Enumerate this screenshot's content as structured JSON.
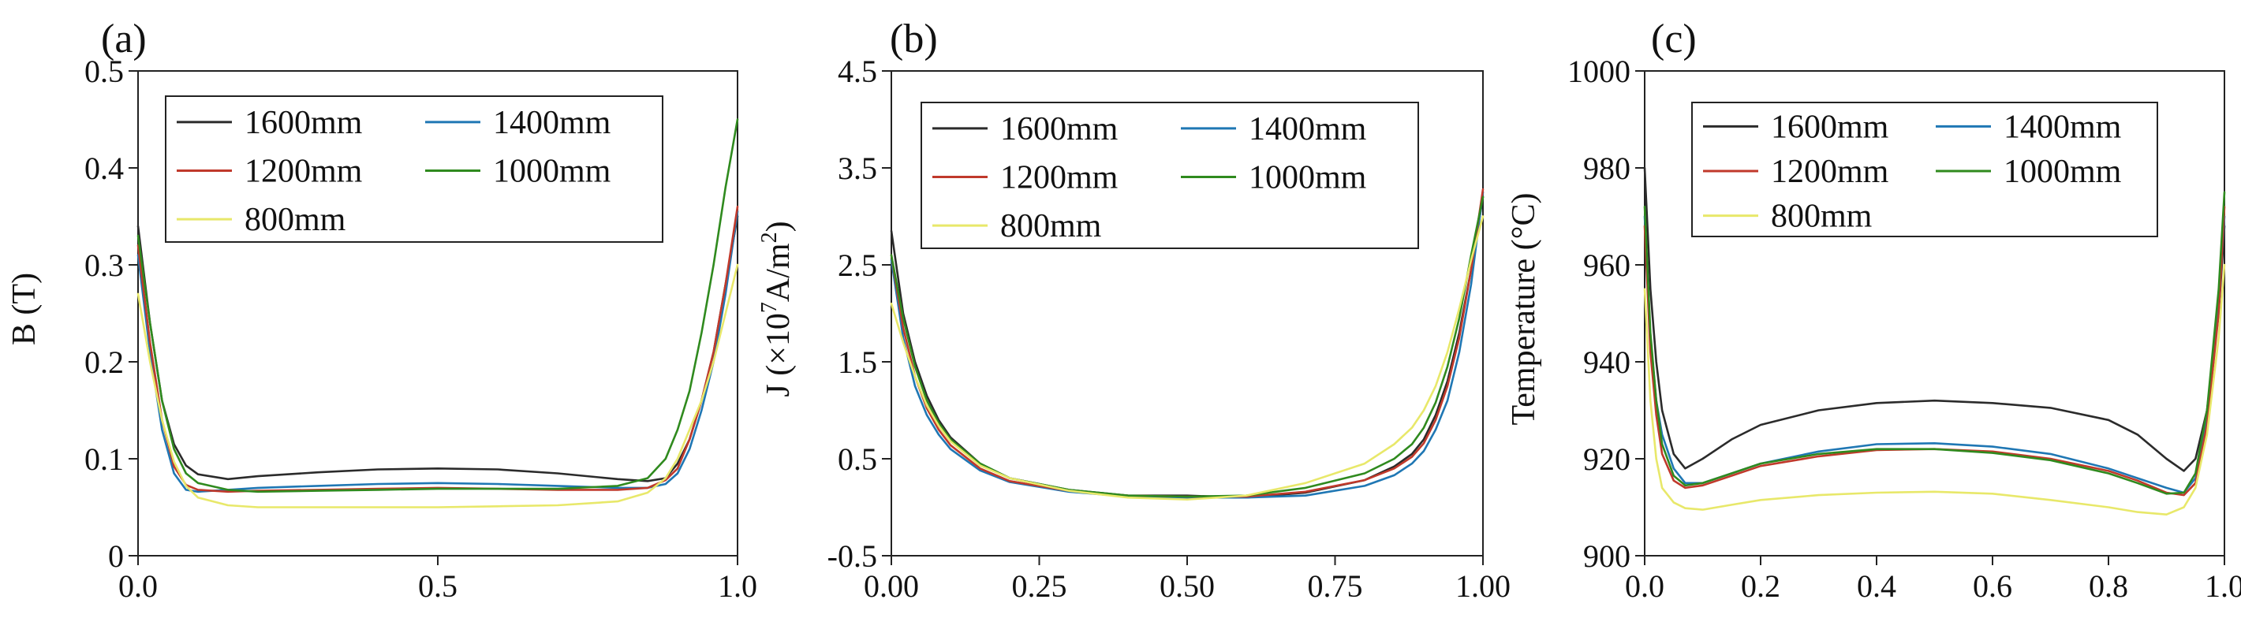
{
  "colors": {
    "1600mm": "#2b2b2b",
    "1400mm": "#1f77b4",
    "1200mm": "#c0392b",
    "1000mm": "#2f8a1e",
    "800mm": "#e8e86a"
  },
  "chart_data": [
    {
      "type": "line",
      "panel_label": "(a)",
      "xlabel": "",
      "ylabel_main": "B (T)",
      "xlim": [
        0,
        1
      ],
      "ylim": [
        0,
        0.5
      ],
      "x_ticks": [
        0.0,
        0.5,
        1.0
      ],
      "x_tick_labels": [
        "0.0",
        "0.5",
        "1.0"
      ],
      "y_ticks": [
        0,
        0.1,
        0.2,
        0.3,
        0.4,
        0.5
      ],
      "y_tick_labels": [
        "0",
        "0.1",
        "0.2",
        "0.3",
        "0.4",
        "0.5"
      ],
      "legend_placement": "top-center",
      "legend": [
        "1600mm",
        "1400mm",
        "1200mm",
        "1000mm",
        "800mm"
      ],
      "x": [
        0.0,
        0.02,
        0.04,
        0.06,
        0.08,
        0.1,
        0.15,
        0.2,
        0.3,
        0.4,
        0.5,
        0.6,
        0.7,
        0.8,
        0.85,
        0.88,
        0.9,
        0.92,
        0.94,
        0.96,
        0.98,
        1.0
      ],
      "series": [
        {
          "name": "1600mm",
          "values": [
            0.34,
            0.24,
            0.16,
            0.115,
            0.093,
            0.084,
            0.079,
            0.082,
            0.086,
            0.089,
            0.09,
            0.089,
            0.085,
            0.079,
            0.077,
            0.08,
            0.095,
            0.12,
            0.16,
            0.21,
            0.28,
            0.35
          ]
        },
        {
          "name": "1400mm",
          "values": [
            0.31,
            0.21,
            0.13,
            0.085,
            0.068,
            0.066,
            0.068,
            0.07,
            0.072,
            0.074,
            0.075,
            0.074,
            0.072,
            0.07,
            0.07,
            0.074,
            0.085,
            0.11,
            0.15,
            0.2,
            0.27,
            0.355
          ]
        },
        {
          "name": "1200mm",
          "values": [
            0.32,
            0.22,
            0.14,
            0.092,
            0.073,
            0.068,
            0.066,
            0.067,
            0.068,
            0.069,
            0.07,
            0.069,
            0.068,
            0.068,
            0.07,
            0.078,
            0.09,
            0.12,
            0.16,
            0.21,
            0.28,
            0.36
          ]
        },
        {
          "name": "1000mm",
          "values": [
            0.33,
            0.24,
            0.16,
            0.11,
            0.085,
            0.075,
            0.068,
            0.066,
            0.067,
            0.068,
            0.069,
            0.069,
            0.069,
            0.072,
            0.08,
            0.1,
            0.13,
            0.17,
            0.23,
            0.3,
            0.38,
            0.45
          ]
        },
        {
          "name": "800mm",
          "values": [
            0.27,
            0.2,
            0.14,
            0.097,
            0.072,
            0.06,
            0.052,
            0.05,
            0.05,
            0.05,
            0.05,
            0.051,
            0.052,
            0.056,
            0.065,
            0.08,
            0.1,
            0.13,
            0.16,
            0.2,
            0.25,
            0.3
          ]
        }
      ]
    },
    {
      "type": "line",
      "panel_label": "(b)",
      "xlabel": "",
      "ylabel_main": "J (×10",
      "ylabel_exp": "7",
      "ylabel_units": "A/m",
      "ylabel_units_exp": "2",
      "ylabel_close": ")",
      "xlim": [
        0,
        1
      ],
      "ylim": [
        -0.5,
        4.5
      ],
      "x_ticks": [
        0.0,
        0.25,
        0.5,
        0.75,
        1.0
      ],
      "x_tick_labels": [
        "0.00",
        "0.25",
        "0.50",
        "0.75",
        "1.00"
      ],
      "y_ticks": [
        -0.5,
        0.5,
        1.5,
        2.5,
        3.5,
        4.5
      ],
      "y_tick_labels": [
        "-0.5",
        "0.5",
        "1.5",
        "2.5",
        "3.5",
        "4.5"
      ],
      "legend_placement": "top-center",
      "legend": [
        "1600mm",
        "1400mm",
        "1200mm",
        "1000mm",
        "800mm"
      ],
      "x": [
        0.0,
        0.02,
        0.04,
        0.06,
        0.08,
        0.1,
        0.15,
        0.2,
        0.3,
        0.4,
        0.5,
        0.6,
        0.7,
        0.8,
        0.85,
        0.88,
        0.9,
        0.92,
        0.94,
        0.96,
        0.98,
        1.0
      ],
      "series": [
        {
          "name": "1600mm",
          "values": [
            2.85,
            2.0,
            1.5,
            1.15,
            0.9,
            0.72,
            0.45,
            0.3,
            0.18,
            0.12,
            0.12,
            0.1,
            0.15,
            0.28,
            0.42,
            0.55,
            0.7,
            0.95,
            1.3,
            1.8,
            2.45,
            3.2
          ]
        },
        {
          "name": "1400mm",
          "values": [
            2.55,
            1.75,
            1.25,
            0.95,
            0.75,
            0.6,
            0.38,
            0.26,
            0.16,
            0.11,
            0.1,
            0.1,
            0.12,
            0.22,
            0.33,
            0.45,
            0.58,
            0.8,
            1.1,
            1.6,
            2.3,
            3.25
          ]
        },
        {
          "name": "1200mm",
          "values": [
            2.6,
            1.85,
            1.35,
            1.02,
            0.8,
            0.64,
            0.4,
            0.27,
            0.17,
            0.12,
            0.11,
            0.11,
            0.16,
            0.28,
            0.4,
            0.52,
            0.66,
            0.9,
            1.25,
            1.75,
            2.45,
            3.28
          ]
        },
        {
          "name": "1000mm",
          "values": [
            2.6,
            1.95,
            1.45,
            1.1,
            0.87,
            0.7,
            0.45,
            0.3,
            0.18,
            0.12,
            0.11,
            0.12,
            0.2,
            0.35,
            0.5,
            0.65,
            0.82,
            1.08,
            1.45,
            1.95,
            2.6,
            3.2
          ]
        },
        {
          "name": "800mm",
          "values": [
            2.1,
            1.7,
            1.35,
            1.05,
            0.84,
            0.68,
            0.43,
            0.3,
            0.17,
            0.1,
            0.08,
            0.12,
            0.25,
            0.45,
            0.65,
            0.82,
            1.0,
            1.25,
            1.6,
            2.05,
            2.55,
            3.0
          ]
        }
      ]
    },
    {
      "type": "line",
      "panel_label": "(c)",
      "xlabel": "",
      "ylabel_main": "Temperature (°C)",
      "xlim": [
        0,
        1
      ],
      "ylim": [
        900,
        1000
      ],
      "x_ticks": [
        0.0,
        0.2,
        0.4,
        0.6,
        0.8,
        1.0
      ],
      "x_tick_labels": [
        "0.0",
        "0.2",
        "0.4",
        "0.6",
        "0.8",
        "1.0"
      ],
      "y_ticks": [
        900,
        920,
        940,
        960,
        980,
        1000
      ],
      "y_tick_labels": [
        "900",
        "920",
        "940",
        "960",
        "980",
        "1000"
      ],
      "legend_placement": "top-center",
      "legend": [
        "1600mm",
        "1400mm",
        "1200mm",
        "1000mm",
        "800mm"
      ],
      "x": [
        0.0,
        0.01,
        0.02,
        0.03,
        0.05,
        0.07,
        0.1,
        0.15,
        0.2,
        0.3,
        0.4,
        0.5,
        0.6,
        0.7,
        0.8,
        0.85,
        0.9,
        0.93,
        0.95,
        0.97,
        0.99,
        1.0
      ],
      "series": [
        {
          "name": "1600mm",
          "values": [
            980,
            955,
            940,
            930,
            921,
            918,
            920,
            924,
            927,
            930,
            931.5,
            932,
            931.5,
            930.5,
            928,
            925,
            920,
            917.5,
            920,
            930,
            950,
            968
          ]
        },
        {
          "name": "1400mm",
          "values": [
            970,
            945,
            932,
            925,
            918,
            915,
            915,
            917,
            919,
            921.5,
            923,
            923.2,
            922.5,
            921,
            918,
            916,
            914,
            913,
            916,
            928,
            952,
            970
          ]
        },
        {
          "name": "1200mm",
          "values": [
            968,
            942,
            929,
            921,
            915.5,
            914,
            914.5,
            916.5,
            918.5,
            920.5,
            921.8,
            922,
            921.5,
            920,
            917.5,
            915.5,
            913,
            912.5,
            915,
            927,
            950,
            972
          ]
        },
        {
          "name": "1000mm",
          "values": [
            972,
            946,
            932,
            923,
            916.5,
            914.5,
            915,
            917,
            919,
            921,
            922,
            922,
            921.2,
            919.7,
            917,
            915,
            912.8,
            913,
            917,
            930,
            955,
            975
          ]
        },
        {
          "name": "800mm",
          "values": [
            955,
            932,
            920,
            914,
            911,
            909.8,
            909.5,
            910.5,
            911.5,
            912.5,
            913,
            913.2,
            912.8,
            911.5,
            910,
            909,
            908.5,
            910,
            914,
            925,
            945,
            960
          ]
        }
      ]
    }
  ]
}
